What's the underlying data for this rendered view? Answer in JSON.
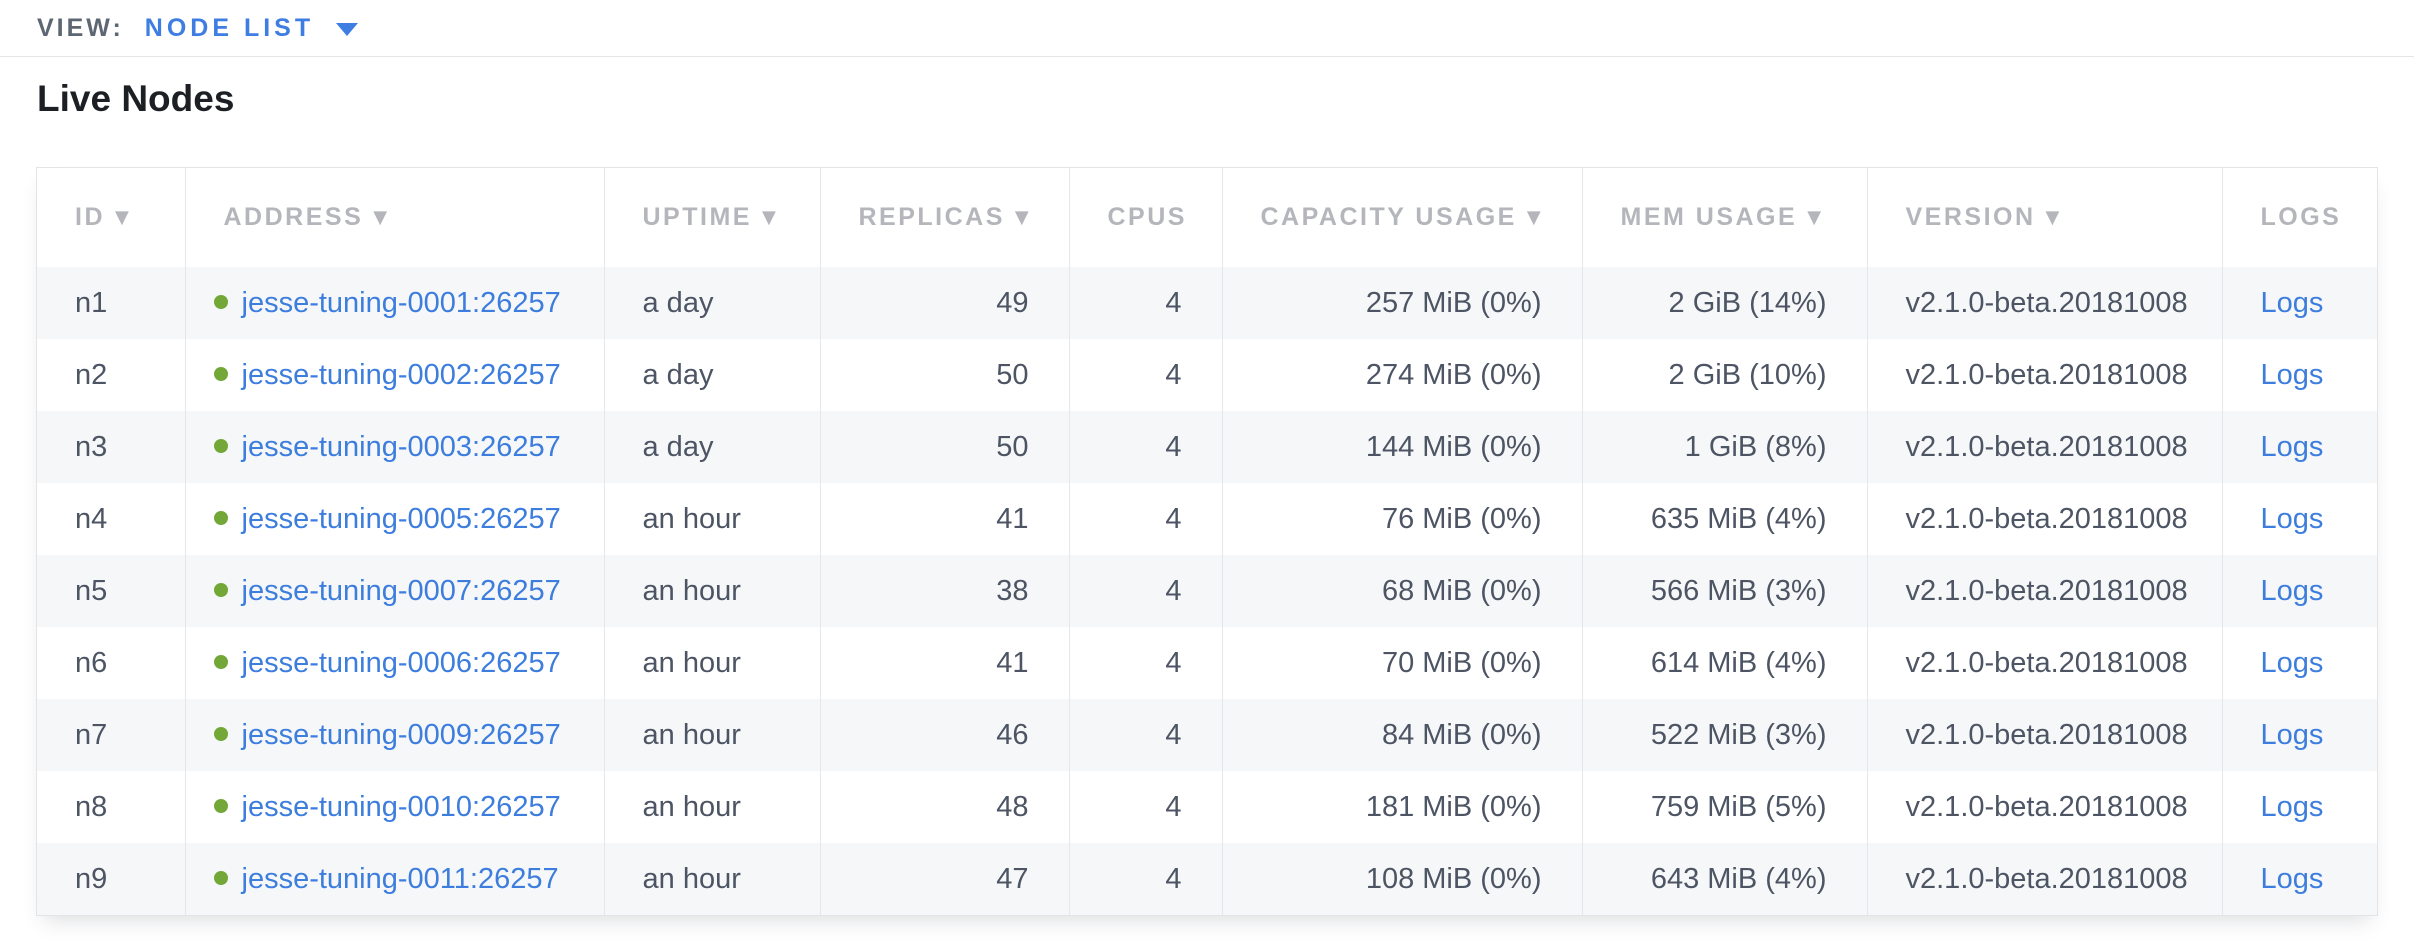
{
  "view_bar": {
    "label": "VIEW:",
    "selected": "NODE LIST"
  },
  "page": {
    "title": "Live Nodes"
  },
  "colors": {
    "accent_blue": "#3e7de2",
    "link_blue": "#3c7dde",
    "live_dot_green": "#73a839",
    "header_gray": "#b4b6bb",
    "cell_text": "#4d5564",
    "row_stripe": "#f6f7f8"
  },
  "icons": {
    "dropdown_caret": "caret-down-icon",
    "sort_desc": "▼",
    "live_status": "green-dot"
  },
  "table": {
    "columns": [
      {
        "key": "id",
        "label": "ID",
        "sortable": true,
        "numeric": false
      },
      {
        "key": "address",
        "label": "ADDRESS",
        "sortable": true,
        "numeric": false
      },
      {
        "key": "uptime",
        "label": "UPTIME",
        "sortable": true,
        "numeric": false
      },
      {
        "key": "replicas",
        "label": "REPLICAS",
        "sortable": true,
        "numeric": true
      },
      {
        "key": "cpus",
        "label": "CPUS",
        "sortable": false,
        "numeric": true
      },
      {
        "key": "capacity",
        "label": "CAPACITY USAGE",
        "sortable": true,
        "numeric": true
      },
      {
        "key": "mem",
        "label": "MEM USAGE",
        "sortable": true,
        "numeric": true
      },
      {
        "key": "version",
        "label": "VERSION",
        "sortable": true,
        "numeric": false
      },
      {
        "key": "logs",
        "label": "LOGS",
        "sortable": false,
        "numeric": false
      }
    ],
    "rows": [
      {
        "id": "n1",
        "status": "live",
        "address": "jesse-tuning-0001:26257",
        "uptime": "a day",
        "replicas": "49",
        "cpus": "4",
        "capacity": "257 MiB (0%)",
        "mem": "2 GiB (14%)",
        "version": "v2.1.0-beta.20181008",
        "logs": "Logs"
      },
      {
        "id": "n2",
        "status": "live",
        "address": "jesse-tuning-0002:26257",
        "uptime": "a day",
        "replicas": "50",
        "cpus": "4",
        "capacity": "274 MiB (0%)",
        "mem": "2 GiB (10%)",
        "version": "v2.1.0-beta.20181008",
        "logs": "Logs"
      },
      {
        "id": "n3",
        "status": "live",
        "address": "jesse-tuning-0003:26257",
        "uptime": "a day",
        "replicas": "50",
        "cpus": "4",
        "capacity": "144 MiB (0%)",
        "mem": "1 GiB (8%)",
        "version": "v2.1.0-beta.20181008",
        "logs": "Logs"
      },
      {
        "id": "n4",
        "status": "live",
        "address": "jesse-tuning-0005:26257",
        "uptime": "an hour",
        "replicas": "41",
        "cpus": "4",
        "capacity": "76 MiB (0%)",
        "mem": "635 MiB (4%)",
        "version": "v2.1.0-beta.20181008",
        "logs": "Logs"
      },
      {
        "id": "n5",
        "status": "live",
        "address": "jesse-tuning-0007:26257",
        "uptime": "an hour",
        "replicas": "38",
        "cpus": "4",
        "capacity": "68 MiB (0%)",
        "mem": "566 MiB (3%)",
        "version": "v2.1.0-beta.20181008",
        "logs": "Logs"
      },
      {
        "id": "n6",
        "status": "live",
        "address": "jesse-tuning-0006:26257",
        "uptime": "an hour",
        "replicas": "41",
        "cpus": "4",
        "capacity": "70 MiB (0%)",
        "mem": "614 MiB (4%)",
        "version": "v2.1.0-beta.20181008",
        "logs": "Logs"
      },
      {
        "id": "n7",
        "status": "live",
        "address": "jesse-tuning-0009:26257",
        "uptime": "an hour",
        "replicas": "46",
        "cpus": "4",
        "capacity": "84 MiB (0%)",
        "mem": "522 MiB (3%)",
        "version": "v2.1.0-beta.20181008",
        "logs": "Logs"
      },
      {
        "id": "n8",
        "status": "live",
        "address": "jesse-tuning-0010:26257",
        "uptime": "an hour",
        "replicas": "48",
        "cpus": "4",
        "capacity": "181 MiB (0%)",
        "mem": "759 MiB (5%)",
        "version": "v2.1.0-beta.20181008",
        "logs": "Logs"
      },
      {
        "id": "n9",
        "status": "live",
        "address": "jesse-tuning-0011:26257",
        "uptime": "an hour",
        "replicas": "47",
        "cpus": "4",
        "capacity": "108 MiB (0%)",
        "mem": "643 MiB (4%)",
        "version": "v2.1.0-beta.20181008",
        "logs": "Logs"
      }
    ]
  }
}
